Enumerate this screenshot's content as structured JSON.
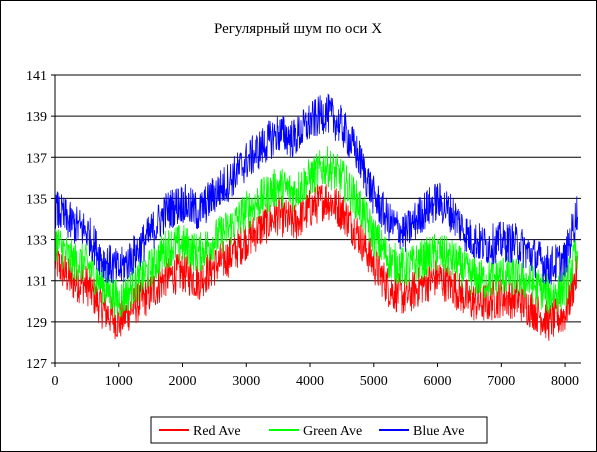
{
  "chart_data": {
    "type": "line",
    "title": "Регулярный шум по оси X",
    "xlabel": "",
    "ylabel": "",
    "xlim": [
      0,
      8250
    ],
    "ylim": [
      127,
      141
    ],
    "x_ticks": [
      "0",
      "1000",
      "2000",
      "3000",
      "4000",
      "5000",
      "6000",
      "7000",
      "8000"
    ],
    "y_ticks": [
      "127",
      "129",
      "131",
      "133",
      "135",
      "137",
      "139",
      "141"
    ],
    "grid": "horizontal major gridlines",
    "legend_position": "bottom",
    "x": [
      0,
      250,
      500,
      750,
      1000,
      1250,
      1500,
      1750,
      2000,
      2250,
      2500,
      2750,
      3000,
      3250,
      3500,
      3750,
      4000,
      4250,
      4500,
      4750,
      5000,
      5250,
      5500,
      5750,
      6000,
      6250,
      6500,
      6750,
      7000,
      7250,
      7500,
      7750,
      8000,
      8200
    ],
    "noise_amplitude": 1.0,
    "series": [
      {
        "name": "Red Ave",
        "color": "#ff0000",
        "values": [
          132.0,
          131.0,
          130.8,
          129.6,
          129.0,
          129.8,
          130.4,
          131.2,
          131.4,
          131.0,
          131.7,
          132.2,
          133.0,
          133.6,
          134.2,
          133.8,
          134.5,
          135.0,
          134.4,
          133.3,
          131.8,
          130.6,
          130.2,
          130.8,
          131.2,
          130.7,
          130.0,
          129.9,
          130.2,
          130.1,
          129.6,
          129.0,
          129.4,
          131.5
        ]
      },
      {
        "name": "Green Ave",
        "color": "#00ff00",
        "values": [
          133.0,
          132.0,
          131.8,
          130.8,
          130.0,
          130.8,
          131.6,
          132.6,
          132.8,
          132.3,
          133.0,
          133.6,
          134.4,
          135.0,
          135.6,
          135.3,
          136.0,
          136.6,
          136.0,
          134.8,
          133.2,
          132.0,
          131.6,
          132.0,
          132.4,
          132.0,
          131.3,
          131.0,
          131.3,
          131.2,
          130.8,
          130.3,
          130.6,
          132.6
        ]
      },
      {
        "name": "Blue Ave",
        "color": "#0000ff",
        "values": [
          134.5,
          133.8,
          133.4,
          132.0,
          131.5,
          132.3,
          133.3,
          134.4,
          134.8,
          134.3,
          135.2,
          135.9,
          136.8,
          137.5,
          138.2,
          137.9,
          138.7,
          139.2,
          138.5,
          137.1,
          135.1,
          133.8,
          133.3,
          134.3,
          134.9,
          134.2,
          133.1,
          132.7,
          132.9,
          132.8,
          132.2,
          131.7,
          132.0,
          134.5
        ]
      }
    ]
  }
}
